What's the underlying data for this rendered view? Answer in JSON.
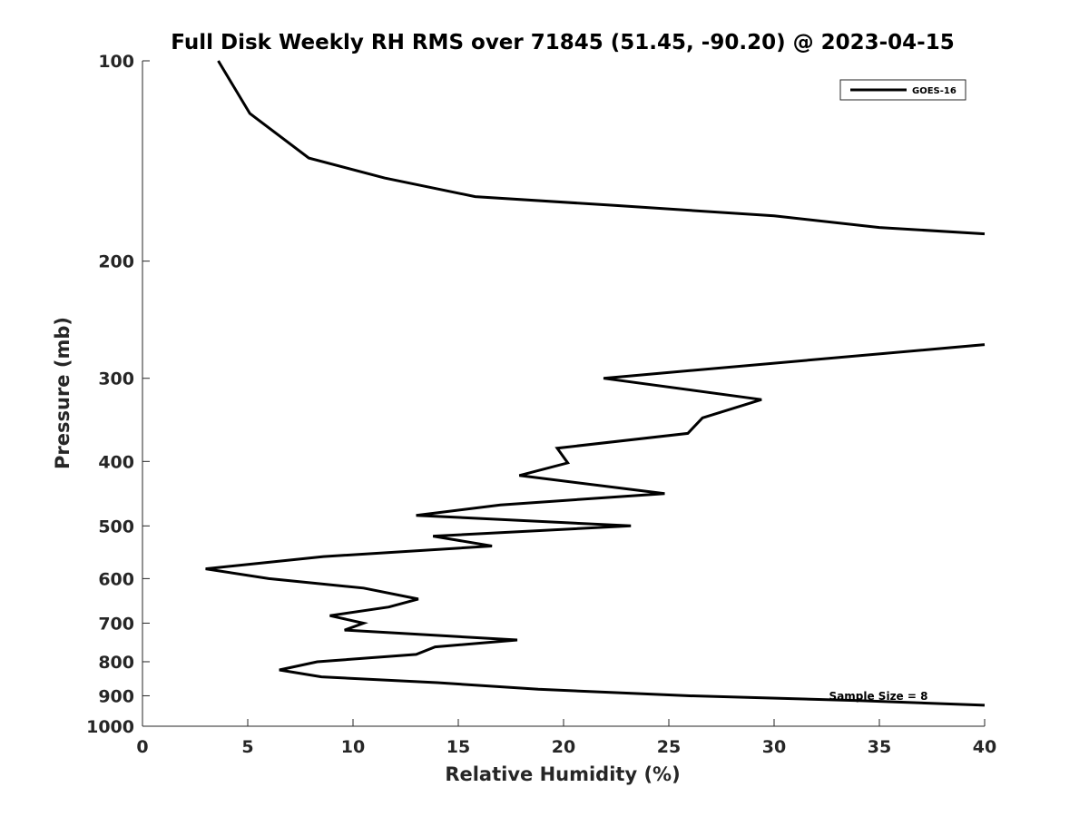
{
  "chart_data": {
    "type": "line",
    "title": "Full Disk Weekly RH RMS over 71845 (51.45, -90.20) @ 2023-04-15",
    "xlabel": "Relative Humidity (%)",
    "ylabel": "Pressure (mb)",
    "xlim": [
      0,
      40
    ],
    "ylim": [
      100,
      1000
    ],
    "y_scale": "log",
    "y_reversed": true,
    "grid": false,
    "legend_placement": "top-right",
    "x_ticks": [
      "0",
      "5",
      "10",
      "15",
      "20",
      "25",
      "30",
      "35",
      "40"
    ],
    "y_ticks": [
      "100",
      "200",
      "300",
      "400",
      "500",
      "600",
      "700",
      "800",
      "900",
      "1000"
    ],
    "annotation": "Sample Size = 8",
    "series": [
      {
        "name": "GOES-16",
        "color": "#000000",
        "segments": [
          [
            {
              "x": 3.6,
              "y": 100
            },
            {
              "x": 5.1,
              "y": 120
            },
            {
              "x": 7.9,
              "y": 140
            },
            {
              "x": 11.5,
              "y": 150
            },
            {
              "x": 15.8,
              "y": 160
            },
            {
              "x": 22.5,
              "y": 165
            },
            {
              "x": 30,
              "y": 171
            },
            {
              "x": 35,
              "y": 178
            },
            {
              "x": 40,
              "y": 182
            }
          ],
          [
            {
              "x": 40,
              "y": 267
            },
            {
              "x": 21.9,
              "y": 300
            },
            {
              "x": 29.4,
              "y": 323
            },
            {
              "x": 26.6,
              "y": 344
            },
            {
              "x": 25.9,
              "y": 363
            },
            {
              "x": 19.7,
              "y": 382
            },
            {
              "x": 20.2,
              "y": 402
            },
            {
              "x": 17.9,
              "y": 420
            },
            {
              "x": 24.8,
              "y": 447
            },
            {
              "x": 17.0,
              "y": 465
            },
            {
              "x": 13.0,
              "y": 482
            },
            {
              "x": 23.2,
              "y": 500
            },
            {
              "x": 13.8,
              "y": 518
            },
            {
              "x": 16.6,
              "y": 536
            },
            {
              "x": 8.6,
              "y": 556
            },
            {
              "x": 3.0,
              "y": 580
            },
            {
              "x": 6.0,
              "y": 600
            },
            {
              "x": 10.5,
              "y": 620
            },
            {
              "x": 13.1,
              "y": 644
            },
            {
              "x": 11.7,
              "y": 662
            },
            {
              "x": 8.9,
              "y": 682
            },
            {
              "x": 10.5,
              "y": 700
            },
            {
              "x": 9.6,
              "y": 717
            },
            {
              "x": 17.8,
              "y": 742
            },
            {
              "x": 13.9,
              "y": 760
            },
            {
              "x": 13.0,
              "y": 780
            },
            {
              "x": 8.3,
              "y": 800
            },
            {
              "x": 6.5,
              "y": 823
            },
            {
              "x": 8.5,
              "y": 843
            },
            {
              "x": 14.0,
              "y": 860
            },
            {
              "x": 18.8,
              "y": 880
            },
            {
              "x": 26.0,
              "y": 900
            },
            {
              "x": 34.0,
              "y": 915
            },
            {
              "x": 40,
              "y": 930
            }
          ]
        ]
      }
    ]
  }
}
